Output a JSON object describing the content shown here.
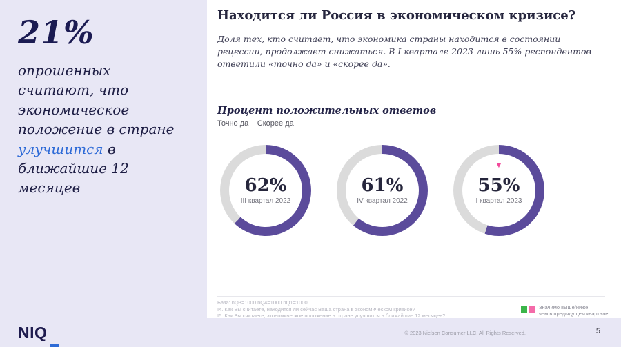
{
  "sidebar": {
    "stat": "21%",
    "text_before": "опрошенных считают, что экономическое положение в стране ",
    "highlight": "улучшится",
    "text_after": " в ближайшие 12 месяцев"
  },
  "main": {
    "title": "Находится ли Россия в экономическом кризисе?",
    "subtitle": "Доля тех, кто считает, что экономика страны находится в состоянии рецессии, продолжает снижаться. В I квартале 2023 лишь 55% респондентов ответили «точно да» и «скорее да»."
  },
  "chart_data": {
    "type": "donut",
    "title": "Процент положительных ответов",
    "subtitle": "Точно да + Скорее да",
    "series": [
      {
        "label": "III квартал 2022",
        "value": 62,
        "display": "62%",
        "marker": null
      },
      {
        "label": "IV квартал 2022",
        "value": 61,
        "display": "61%",
        "marker": null
      },
      {
        "label": "I квартал 2023",
        "value": 55,
        "display": "55%",
        "marker": "significantly-lower"
      }
    ],
    "colors": {
      "fill": "#5b4b9b",
      "track": "#dbdbdb",
      "marker_down": "#f2499b"
    },
    "legend_position": "bottom-right",
    "value_range": [
      0,
      100
    ]
  },
  "footnotes": {
    "base": "База: nQ3=1000 nQ4=1000 nQ1=1000",
    "q1": "I4. Как Вы считаете, находится ли сейчас Ваша страна в экономическом кризисе?",
    "q2": "I5. Как Вы считаете,  экономическое положение в стране улучшится в ближайшие 12 месяцев?"
  },
  "legend": {
    "line1": "Значимо выше/ниже,",
    "line2": "чем в предыдущем квартале",
    "higher_color": "#3bb54a",
    "lower_color": "#f46ba9"
  },
  "footer": {
    "logo": "NIQ",
    "copyright": "© 2023 Nielsen Consumer LLC. All Rights Reserved.",
    "page": "5"
  }
}
